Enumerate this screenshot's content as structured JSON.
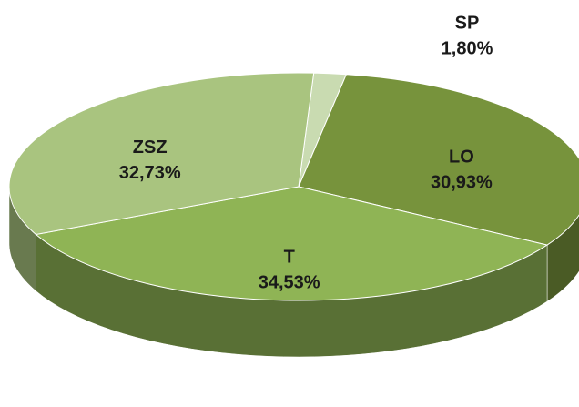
{
  "chart_data": {
    "type": "pie",
    "categories": [
      "SP",
      "LO",
      "T",
      "ZSZ"
    ],
    "values": [
      1.8,
      30.93,
      34.53,
      32.73
    ],
    "value_labels": [
      "1,80%",
      "30,93%",
      "34,53%",
      "32,73%"
    ],
    "colors": [
      "#c9dbb1",
      "#77933c",
      "#8fb455",
      "#a9c47f"
    ]
  }
}
